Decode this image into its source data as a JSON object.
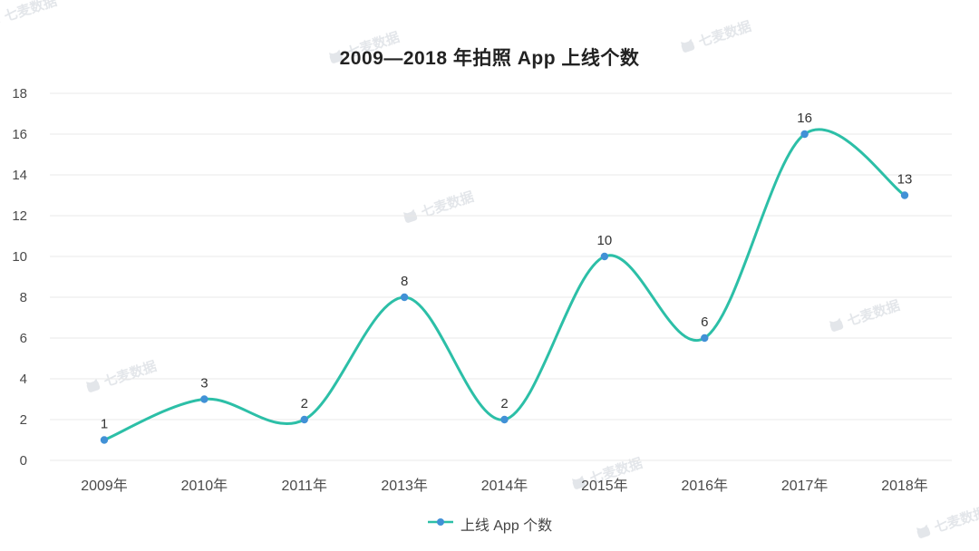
{
  "title": "2009—2018 年拍照 App 上线个数",
  "legend": {
    "label": "上线 App 个数"
  },
  "watermark": {
    "text": "七麦数据"
  },
  "colors": {
    "line": "#2cbfa7",
    "marker": "#4191d6",
    "grid": "#e8e8e8",
    "axis_text": "#4a4a4a",
    "value_label": "#333333",
    "title": "#222222"
  },
  "chart_data": {
    "type": "line",
    "smooth": true,
    "title": "2009—2018 年拍照 App 上线个数",
    "categories": [
      "2009年",
      "2010年",
      "2011年",
      "2013年",
      "2014年",
      "2015年",
      "2016年",
      "2017年",
      "2018年"
    ],
    "series": [
      {
        "name": "上线 App 个数",
        "values": [
          1,
          3,
          2,
          8,
          2,
          10,
          6,
          16,
          13
        ]
      }
    ],
    "xlabel": "",
    "ylabel": "",
    "ylim": [
      0,
      18
    ],
    "ytick_step": 2,
    "yticks": [
      0,
      2,
      4,
      6,
      8,
      10,
      12,
      14,
      16,
      18
    ],
    "grid": true,
    "legend_position": "bottom"
  }
}
